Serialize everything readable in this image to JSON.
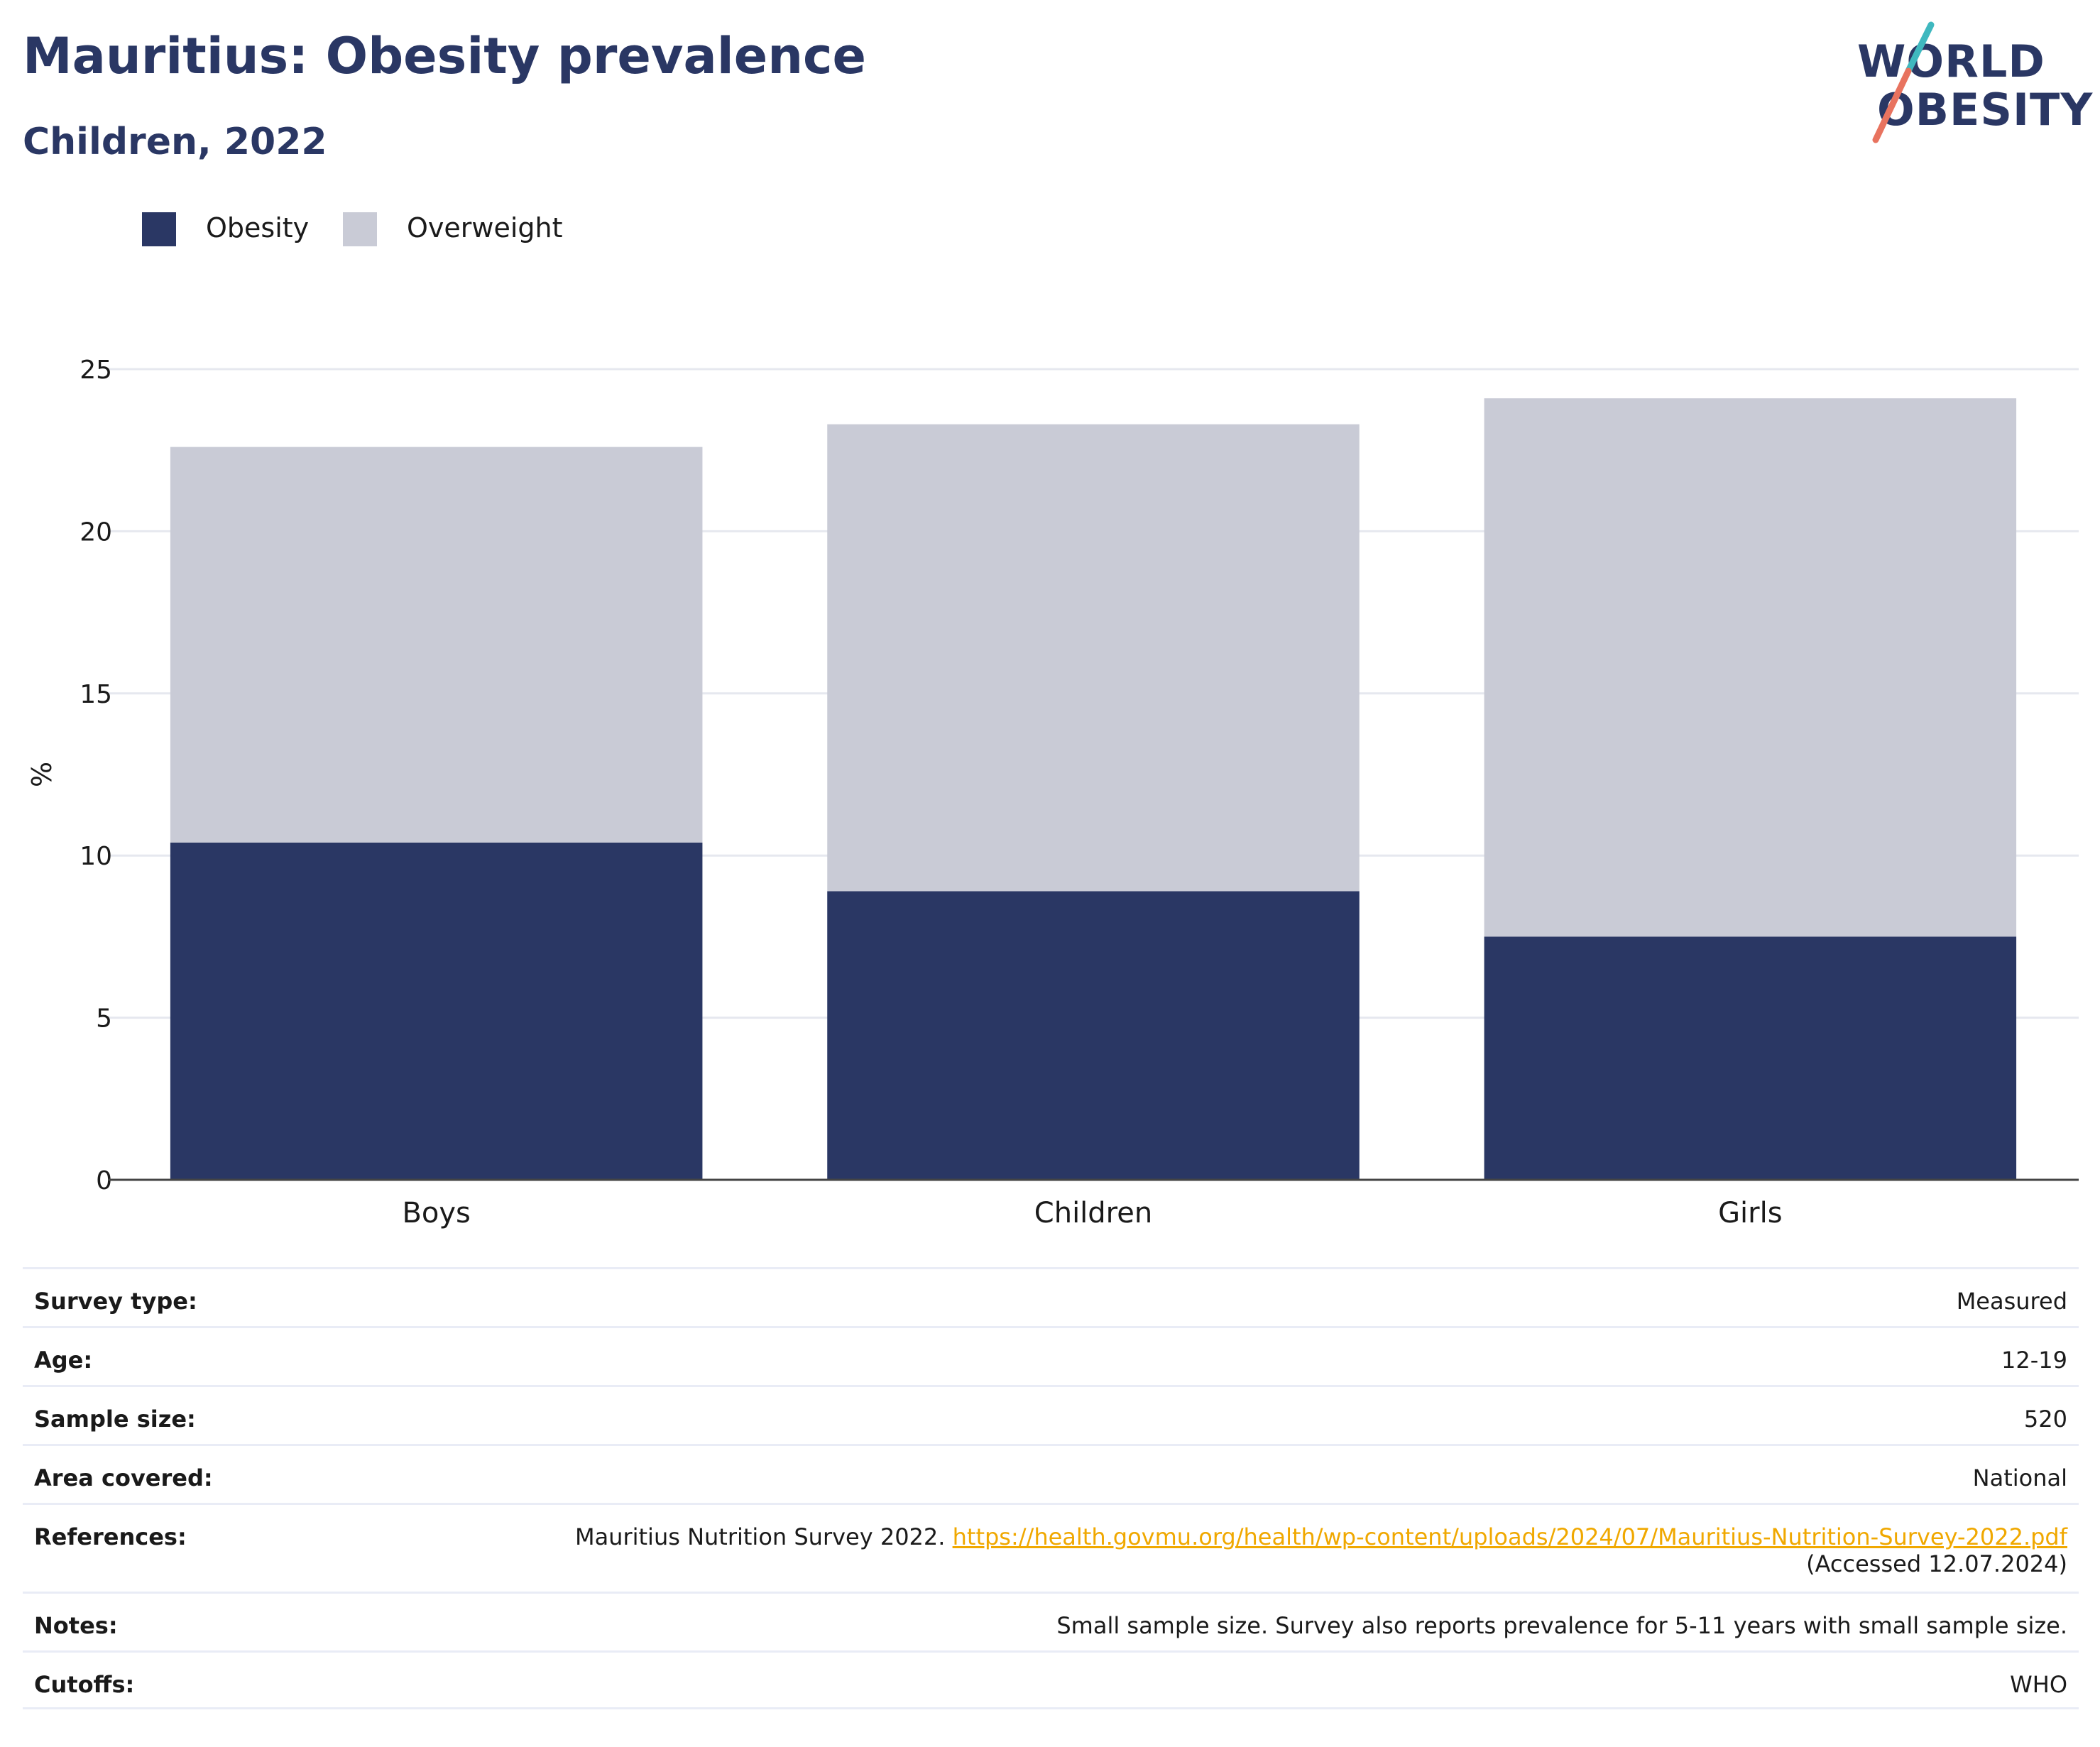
{
  "title": "Mauritius: Obesity prevalence",
  "subtitle": "Children, 2022",
  "logo": {
    "line1": "WORLD",
    "line2": "OBESITY"
  },
  "colors": {
    "obesity": "#2a3764",
    "overweight": "#c9cbd6",
    "title": "#2a3764",
    "link": "#f0a800",
    "logo_teal": "#3fb8bf",
    "logo_coral": "#e8735f"
  },
  "chart_data": {
    "type": "bar",
    "stacked": true,
    "categories": [
      "Boys",
      "Children",
      "Girls"
    ],
    "series": [
      {
        "name": "Obesity",
        "values": [
          10.4,
          8.9,
          7.5
        ]
      },
      {
        "name": "Overweight",
        "values": [
          12.2,
          14.4,
          16.6
        ]
      }
    ],
    "ylabel": "%",
    "ylim": [
      0,
      25
    ],
    "yticks": [
      0,
      5,
      10,
      15,
      20,
      25
    ],
    "grid": true,
    "legend_position": "top-left"
  },
  "info": {
    "survey_type": {
      "label": "Survey type:",
      "value": "Measured"
    },
    "age": {
      "label": "Age:",
      "value": "12-19"
    },
    "sample_size": {
      "label": "Sample size:",
      "value": "520"
    },
    "area": {
      "label": "Area covered:",
      "value": "National"
    },
    "references": {
      "label": "References:",
      "text": "Mauritius Nutrition Survey 2022.",
      "link": "https://health.govmu.org/health/wp-content/uploads/2024/07/Mauritius-Nutrition-Survey-2022.pdf",
      "accessed": "(Accessed 12.07.2024)"
    },
    "notes": {
      "label": "Notes:",
      "value": "Small sample size. Survey also reports prevalence for 5-11 years with small sample size."
    },
    "cutoffs": {
      "label": "Cutoffs:",
      "value": "WHO"
    }
  }
}
